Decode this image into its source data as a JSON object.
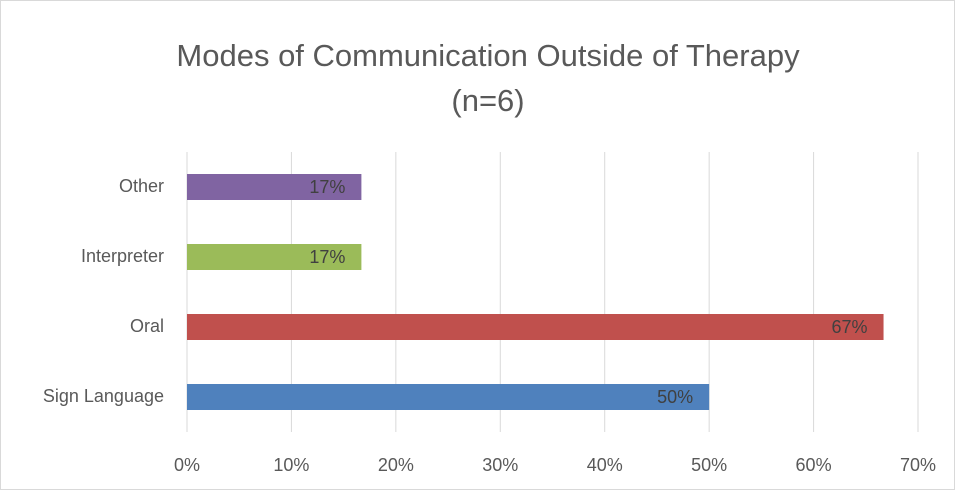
{
  "chart_data": {
    "type": "hbar",
    "title": "Modes of Communication Outside of Therapy",
    "subtitle": "(n=6)",
    "categories": [
      "Sign Language",
      "Oral",
      "Interpreter",
      "Other"
    ],
    "values": [
      50,
      66.7,
      16.7,
      16.7
    ],
    "value_labels": [
      "50%",
      "67%",
      "17%",
      "17%"
    ],
    "colors": [
      "#4f81bd",
      "#c0504d",
      "#9bbb59",
      "#8064a2"
    ],
    "xlim": [
      0,
      70
    ],
    "xticks": [
      {
        "value": 0,
        "label": "0%"
      },
      {
        "value": 10,
        "label": "10%"
      },
      {
        "value": 20,
        "label": "20%"
      },
      {
        "value": 30,
        "label": "30%"
      },
      {
        "value": 40,
        "label": "40%"
      },
      {
        "value": 50,
        "label": "50%"
      },
      {
        "value": 60,
        "label": "60%"
      },
      {
        "value": 70,
        "label": "70%"
      }
    ],
    "grid": true
  }
}
